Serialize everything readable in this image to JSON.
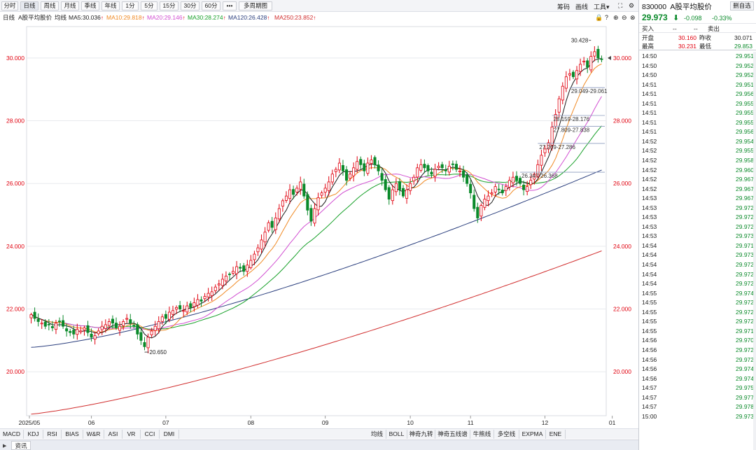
{
  "toolbar": {
    "periods": [
      "分时",
      "日线",
      "周线",
      "月线",
      "季线",
      "年线",
      "1分",
      "5分",
      "15分",
      "30分",
      "60分",
      "•••",
      "多周期图"
    ],
    "active_period": "日线",
    "tools": [
      "筹码",
      "画线",
      "工具▾"
    ]
  },
  "ma_legend": {
    "period": "日线",
    "name": "A股平均股价",
    "avg": "均线",
    "items": [
      {
        "label": "MA5:30.036",
        "color": "#1a1a1a"
      },
      {
        "label": "MA10:29.818",
        "color": "#f08a24"
      },
      {
        "label": "MA20:29.146",
        "color": "#d14fd1"
      },
      {
        "label": "MA30:28.274",
        "color": "#16a028"
      },
      {
        "label": "MA120:26.428",
        "color": "#2b3f7e"
      },
      {
        "label": "MA250:23.852",
        "color": "#d12e2e"
      }
    ]
  },
  "chart_data": {
    "type": "candlestick",
    "ylim": [
      18.6,
      31.0
    ],
    "y_ticks": [
      "30.000",
      "28.000",
      "26.000",
      "24.000",
      "22.000",
      "20.000"
    ],
    "x_labels": [
      "2025/05",
      "06",
      "07",
      "08",
      "09",
      "10",
      "11",
      "12",
      "01"
    ],
    "annotations": {
      "high": "30.428",
      "low": "20.650",
      "ranges": [
        "29.049-29.061",
        "28.159-28.176",
        "27.809-27.838",
        "27.269-27.286",
        "26.347-26.368"
      ]
    },
    "series": [
      {
        "name": "MA5",
        "color": "#1a1a1a"
      },
      {
        "name": "MA10",
        "color": "#f08a24"
      },
      {
        "name": "MA20",
        "color": "#d14fd1"
      },
      {
        "name": "MA30",
        "color": "#16a028"
      },
      {
        "name": "MA120",
        "color": "#2b3f7e"
      },
      {
        "name": "MA250",
        "color": "#d12e2e"
      }
    ],
    "closes": [
      21.82,
      21.7,
      21.6,
      21.55,
      21.45,
      21.5,
      21.4,
      21.55,
      21.6,
      21.45,
      21.3,
      21.25,
      21.2,
      21.35,
      21.3,
      21.4,
      21.25,
      21.1,
      21.15,
      21.3,
      21.45,
      21.5,
      21.6,
      21.55,
      21.4,
      21.45,
      21.6,
      21.7,
      21.55,
      21.45,
      21.2,
      21.0,
      20.8,
      21.1,
      21.3,
      21.45,
      21.6,
      21.75,
      21.7,
      21.9,
      21.95,
      22.05,
      22.0,
      21.95,
      22.1,
      22.05,
      22.2,
      22.3,
      22.25,
      22.4,
      22.5,
      22.55,
      22.7,
      22.8,
      22.95,
      23.05,
      23.1,
      23.2,
      23.35,
      23.3,
      23.2,
      23.4,
      23.55,
      23.75,
      23.95,
      24.2,
      24.45,
      24.75,
      24.6,
      24.9,
      25.2,
      25.45,
      25.6,
      25.8,
      25.65,
      25.85,
      26.05,
      25.6,
      25.15,
      24.8,
      25.2,
      25.55,
      25.7,
      25.85,
      26.05,
      26.3,
      26.45,
      26.65,
      26.4,
      26.1,
      26.3,
      26.5,
      26.7,
      26.6,
      26.4,
      26.65,
      26.75,
      26.6,
      26.4,
      26.1,
      25.8,
      25.5,
      25.8,
      26.0,
      25.8,
      25.6,
      25.8,
      26.0,
      26.2,
      26.5,
      26.6,
      26.5,
      26.4,
      26.3,
      26.45,
      26.55,
      26.5,
      26.4,
      26.55,
      26.6,
      26.45,
      26.4,
      26.2,
      26.0,
      25.7,
      25.2,
      24.9,
      25.3,
      25.5,
      25.6,
      25.7,
      25.9,
      25.8,
      25.7,
      25.9,
      26.1,
      26.2,
      26.1,
      26.0,
      25.8,
      25.9,
      26.1,
      26.3,
      26.6,
      26.9,
      27.1,
      27.3,
      27.8,
      28.2,
      28.7,
      29.1,
      29.4,
      29.5,
      29.4,
      29.6,
      29.8,
      29.9,
      29.7,
      30.05,
      30.2,
      30.0,
      29.97
    ],
    "ma_values": {
      "MA5": "30.036",
      "MA10": "29.818",
      "MA20": "29.146",
      "MA30": "28.274",
      "MA120": "26.428",
      "MA250": "23.852"
    },
    "ma250_range": [
      18.65,
      23.852
    ],
    "ma120_range": [
      20.78,
      26.428
    ],
    "last_price_marker": "30.000"
  },
  "indicators": [
    "MACD",
    "KDJ",
    "RSI",
    "BIAS",
    "W&R",
    "ASI",
    "VR",
    "CCI",
    "DMI"
  ],
  "overlays": [
    "均线",
    "BOLL",
    "神奇九转",
    "神奇五线谱",
    "牛熊线",
    "多空线",
    "EXPMA",
    "ENE"
  ],
  "infobar": {
    "tab": "资讯"
  },
  "quote": {
    "code": "830000",
    "name": "A股平均股价",
    "add_button": "删自选",
    "price": "29.973",
    "change": "-0.098",
    "change_pct": "-0.33%",
    "buy_label": "买入",
    "buy_value": "--",
    "sell_label": "卖出",
    "sell_value": "--",
    "open_label": "开盘",
    "open_value": "30.160",
    "prev_label": "昨收",
    "prev_value": "30.071",
    "high_label": "最高",
    "high_value": "30.231",
    "low_label": "最低",
    "low_value": "29.853"
  },
  "ticks": [
    {
      "t": "14:50",
      "p": "29.951"
    },
    {
      "t": "14:50",
      "p": "29.952"
    },
    {
      "t": "14:50",
      "p": "29.952"
    },
    {
      "t": "14:51",
      "p": "29.951"
    },
    {
      "t": "14:51",
      "p": "29.956"
    },
    {
      "t": "14:51",
      "p": "29.955"
    },
    {
      "t": "14:51",
      "p": "29.955"
    },
    {
      "t": "14:51",
      "p": "29.955"
    },
    {
      "t": "14:51",
      "p": "29.956"
    },
    {
      "t": "14:52",
      "p": "29.954"
    },
    {
      "t": "14:52",
      "p": "29.955"
    },
    {
      "t": "14:52",
      "p": "29.958"
    },
    {
      "t": "14:52",
      "p": "29.960"
    },
    {
      "t": "14:52",
      "p": "29.967"
    },
    {
      "t": "14:52",
      "p": "29.967"
    },
    {
      "t": "14:53",
      "p": "29.967"
    },
    {
      "t": "14:53",
      "p": "29.972"
    },
    {
      "t": "14:53",
      "p": "29.972"
    },
    {
      "t": "14:53",
      "p": "29.972"
    },
    {
      "t": "14:53",
      "p": "29.973"
    },
    {
      "t": "14:54",
      "p": "29.971"
    },
    {
      "t": "14:54",
      "p": "29.973"
    },
    {
      "t": "14:54",
      "p": "29.972"
    },
    {
      "t": "14:54",
      "p": "29.972"
    },
    {
      "t": "14:54",
      "p": "29.972"
    },
    {
      "t": "14:55",
      "p": "29.974"
    },
    {
      "t": "14:55",
      "p": "29.972"
    },
    {
      "t": "14:55",
      "p": "29.972"
    },
    {
      "t": "14:55",
      "p": "29.972"
    },
    {
      "t": "14:55",
      "p": "29.971"
    },
    {
      "t": "14:56",
      "p": "29.970"
    },
    {
      "t": "14:56",
      "p": "29.972"
    },
    {
      "t": "14:56",
      "p": "29.972"
    },
    {
      "t": "14:56",
      "p": "29.974"
    },
    {
      "t": "14:56",
      "p": "29.974"
    },
    {
      "t": "14:57",
      "p": "29.975"
    },
    {
      "t": "14:57",
      "p": "29.977"
    },
    {
      "t": "14:57",
      "p": "29.978"
    },
    {
      "t": "15:00",
      "p": "29.973"
    }
  ]
}
